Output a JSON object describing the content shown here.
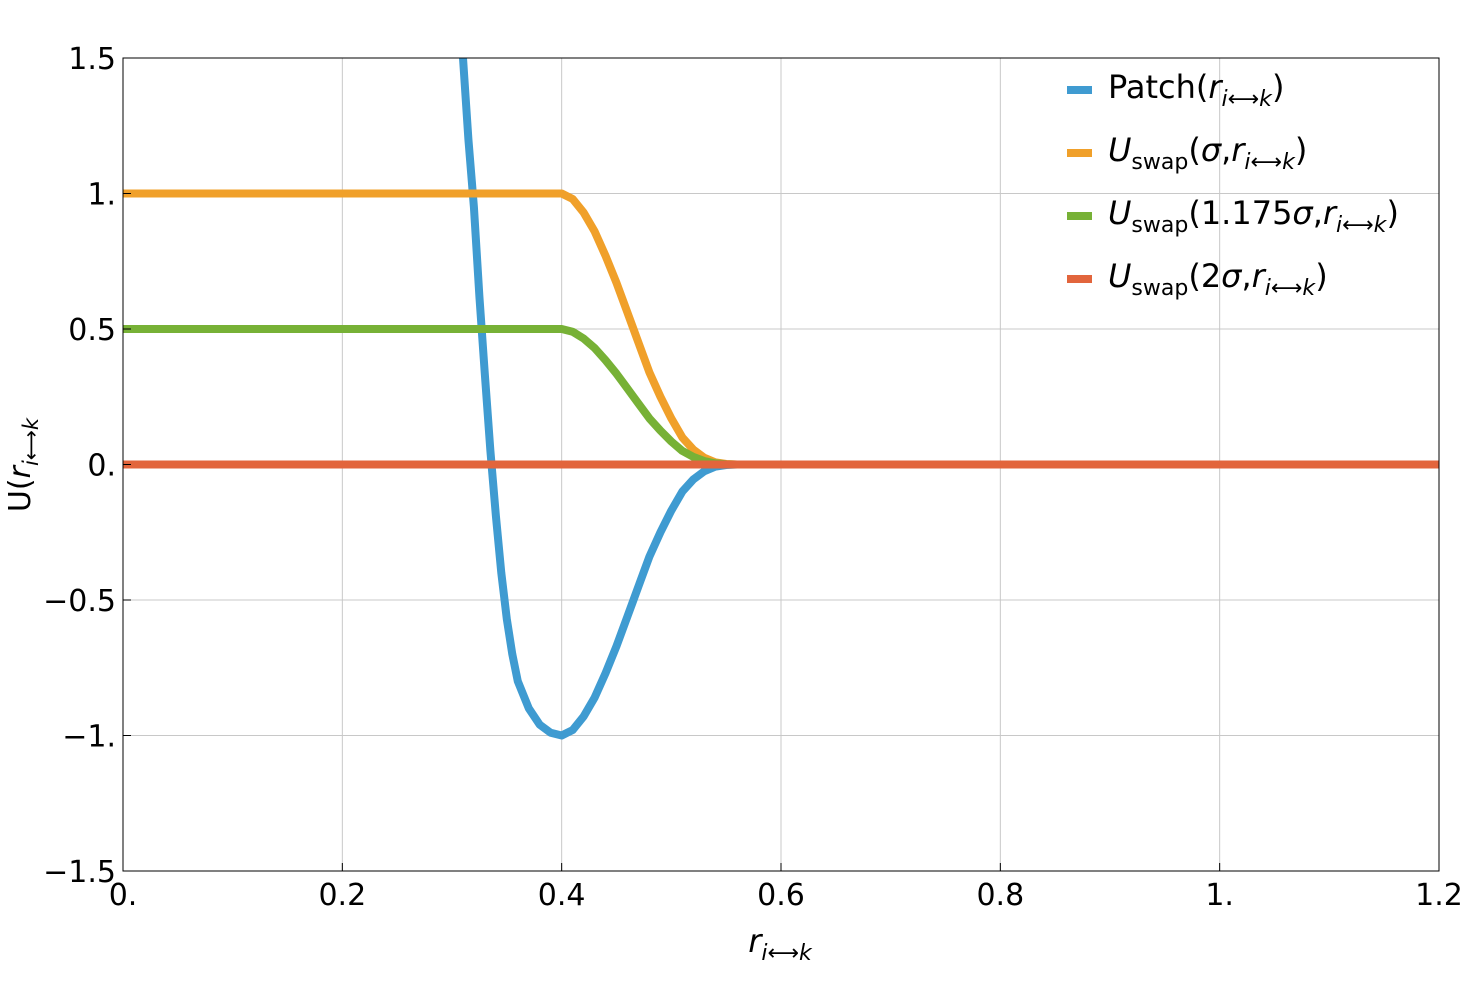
{
  "chart_data": {
    "type": "line",
    "title": "",
    "xlabel": {
      "base": "r",
      "sub": "i⟷k"
    },
    "ylabel": {
      "prefix": "U(",
      "base": "r",
      "sub": "i⟷k",
      "suffix": ""
    },
    "xlim": [
      0,
      1.2
    ],
    "ylim": [
      -1.5,
      1.5
    ],
    "grid": true,
    "legend_position": "top-right",
    "x_ticks": [
      {
        "value": 0,
        "label": "0."
      },
      {
        "value": 0.2,
        "label": "0.2"
      },
      {
        "value": 0.4,
        "label": "0.4"
      },
      {
        "value": 0.6,
        "label": "0.6"
      },
      {
        "value": 0.8,
        "label": "0.8"
      },
      {
        "value": 1.0,
        "label": "1."
      },
      {
        "value": 1.2,
        "label": "1.2"
      }
    ],
    "y_ticks": [
      {
        "value": 1.5,
        "label": "1.5"
      },
      {
        "value": 1.0,
        "label": "1."
      },
      {
        "value": 0.5,
        "label": "0.5"
      },
      {
        "value": 0,
        "label": "0."
      },
      {
        "value": -0.5,
        "label": "−0.5"
      },
      {
        "value": -1.0,
        "label": "−1."
      },
      {
        "value": -1.5,
        "label": "−1.5"
      }
    ],
    "series": [
      {
        "legend": {
          "main": "Patch(",
          "italic_r": "r",
          "sub": "i⟷k",
          "close": ")",
          "U": false,
          "arg": ""
        },
        "color": "#3f9bd1",
        "points": [
          [
            0.31,
            1.5
          ],
          [
            0.315,
            1.2
          ],
          [
            0.32,
            0.95
          ],
          [
            0.325,
            0.62
          ],
          [
            0.33,
            0.33
          ],
          [
            0.335,
            0.05
          ],
          [
            0.34,
            -0.19
          ],
          [
            0.345,
            -0.4
          ],
          [
            0.35,
            -0.57
          ],
          [
            0.355,
            -0.7
          ],
          [
            0.36,
            -0.8
          ],
          [
            0.37,
            -0.9
          ],
          [
            0.38,
            -0.96
          ],
          [
            0.39,
            -0.99
          ],
          [
            0.4,
            -1.0
          ],
          [
            0.41,
            -0.98
          ],
          [
            0.42,
            -0.93
          ],
          [
            0.43,
            -0.86
          ],
          [
            0.44,
            -0.77
          ],
          [
            0.45,
            -0.67
          ],
          [
            0.46,
            -0.56
          ],
          [
            0.47,
            -0.45
          ],
          [
            0.48,
            -0.34
          ],
          [
            0.49,
            -0.25
          ],
          [
            0.5,
            -0.17
          ],
          [
            0.51,
            -0.1
          ],
          [
            0.52,
            -0.055
          ],
          [
            0.53,
            -0.025
          ],
          [
            0.54,
            -0.008
          ],
          [
            0.55,
            -0.002
          ],
          [
            0.56,
            0
          ],
          [
            1.2,
            0
          ]
        ]
      },
      {
        "legend": {
          "main": "",
          "italic_r": "r",
          "sub": "i⟷k",
          "close": ")",
          "U": true,
          "arg": "σ,"
        },
        "color": "#f0a02a",
        "points": [
          [
            0,
            1
          ],
          [
            0.4,
            1
          ],
          [
            0.41,
            0.98
          ],
          [
            0.42,
            0.93
          ],
          [
            0.43,
            0.86
          ],
          [
            0.44,
            0.77
          ],
          [
            0.45,
            0.67
          ],
          [
            0.46,
            0.56
          ],
          [
            0.47,
            0.45
          ],
          [
            0.48,
            0.34
          ],
          [
            0.49,
            0.25
          ],
          [
            0.5,
            0.17
          ],
          [
            0.51,
            0.1
          ],
          [
            0.52,
            0.055
          ],
          [
            0.53,
            0.025
          ],
          [
            0.54,
            0.008
          ],
          [
            0.55,
            0.002
          ],
          [
            0.56,
            0
          ],
          [
            1.2,
            0
          ]
        ]
      },
      {
        "legend": {
          "main": "",
          "italic_r": "r",
          "sub": "i⟷k",
          "close": ")",
          "U": true,
          "arg": "1.175σ,"
        },
        "color": "#77b136",
        "points": [
          [
            0,
            0.5
          ],
          [
            0.4,
            0.5
          ],
          [
            0.41,
            0.49
          ],
          [
            0.42,
            0.465
          ],
          [
            0.43,
            0.43
          ],
          [
            0.44,
            0.385
          ],
          [
            0.45,
            0.335
          ],
          [
            0.46,
            0.28
          ],
          [
            0.47,
            0.225
          ],
          [
            0.48,
            0.17
          ],
          [
            0.49,
            0.125
          ],
          [
            0.5,
            0.085
          ],
          [
            0.51,
            0.05
          ],
          [
            0.52,
            0.028
          ],
          [
            0.53,
            0.013
          ],
          [
            0.54,
            0.004
          ],
          [
            0.55,
            0.001
          ],
          [
            0.56,
            0
          ],
          [
            1.2,
            0
          ]
        ]
      },
      {
        "legend": {
          "main": "",
          "italic_r": "r",
          "sub": "i⟷k",
          "close": ")",
          "U": true,
          "arg": "2σ,"
        },
        "color": "#e2653c",
        "points": [
          [
            0,
            0
          ],
          [
            1.2,
            0
          ]
        ]
      }
    ],
    "legend_U": {
      "base": "U",
      "sub": "swap",
      "open": "("
    }
  }
}
